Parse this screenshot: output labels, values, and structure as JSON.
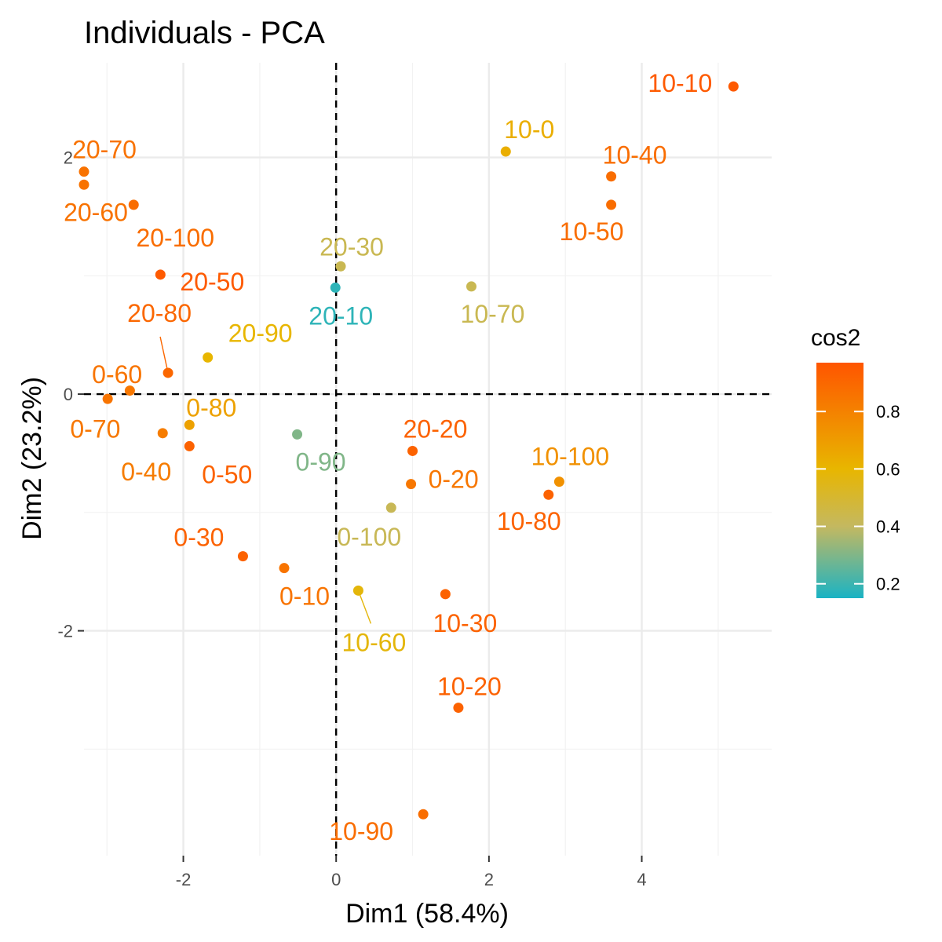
{
  "chart_data": {
    "type": "scatter",
    "title": "Individuals - PCA",
    "xlabel": "Dim1 (58.4%)",
    "ylabel": "Dim2 (23.2%)",
    "xlim": [
      -3.3,
      5.7
    ],
    "ylim": [
      -3.9,
      2.8
    ],
    "x_ticks": [
      -2,
      0,
      2,
      4
    ],
    "y_ticks": [
      -2,
      0,
      2
    ],
    "x_tick_labels": [
      "-2",
      "0",
      "2",
      "4"
    ],
    "y_tick_labels": [
      "-2",
      "0",
      "2"
    ],
    "grid": true,
    "reference_lines": {
      "x": 0,
      "y": 0,
      "style": "dashed"
    },
    "legend": {
      "title": "cos2",
      "placement": "right",
      "range": [
        0.15,
        0.97
      ],
      "ticks": [
        0.2,
        0.4,
        0.6,
        0.8
      ],
      "tick_labels": [
        "0.2",
        "0.4",
        "0.6",
        "0.8"
      ],
      "gradient": [
        {
          "value": 0.15,
          "color": "#1ab3c4"
        },
        {
          "value": 0.4,
          "color": "#c4b860"
        },
        {
          "value": 0.6,
          "color": "#e8b600"
        },
        {
          "value": 0.97,
          "color": "#ff5500"
        }
      ]
    },
    "points": [
      {
        "label": "10-10",
        "x": 5.2,
        "y": 2.6,
        "cos2": 0.95
      },
      {
        "label": "10-0",
        "x": 2.22,
        "y": 2.05,
        "cos2": 0.63
      },
      {
        "label": "10-40",
        "x": 3.6,
        "y": 1.84,
        "cos2": 0.88
      },
      {
        "label": "10-50",
        "x": 3.6,
        "y": 1.6,
        "cos2": 0.88
      },
      {
        "label": "20-70",
        "x": -3.3,
        "y": 1.88,
        "cos2": 0.86
      },
      {
        "label": "20-60",
        "x": -3.3,
        "y": 1.77,
        "cos2": 0.86
      },
      {
        "label": "20-100",
        "x": -2.65,
        "y": 1.6,
        "cos2": 0.88
      },
      {
        "label": "20-50",
        "x": -2.3,
        "y": 1.01,
        "cos2": 0.95
      },
      {
        "label": "20-30",
        "x": 0.06,
        "y": 1.08,
        "cos2": 0.43
      },
      {
        "label": "20-10",
        "x": -0.01,
        "y": 0.9,
        "cos2": 0.18
      },
      {
        "label": "10-70",
        "x": 1.77,
        "y": 0.91,
        "cos2": 0.43
      },
      {
        "label": "20-80",
        "x": -2.2,
        "y": 0.18,
        "cos2": 0.9
      },
      {
        "label": "20-90",
        "x": -1.68,
        "y": 0.31,
        "cos2": 0.6
      },
      {
        "label": "0-60",
        "x": -2.99,
        "y": -0.04,
        "cos2": 0.85
      },
      {
        "label": "0-70",
        "x": -2.7,
        "y": 0.03,
        "cos2": 0.84
      },
      {
        "label": "0-80",
        "x": -1.92,
        "y": -0.26,
        "cos2": 0.68
      },
      {
        "label": "0-40",
        "x": -2.27,
        "y": -0.33,
        "cos2": 0.82
      },
      {
        "label": "0-50",
        "x": -1.92,
        "y": -0.44,
        "cos2": 0.92
      },
      {
        "label": "0-90",
        "x": -0.51,
        "y": -0.34,
        "cos2": 0.3
      },
      {
        "label": "20-20",
        "x": 1.0,
        "y": -0.48,
        "cos2": 0.92
      },
      {
        "label": "0-20",
        "x": 0.98,
        "y": -0.76,
        "cos2": 0.84
      },
      {
        "label": "10-100",
        "x": 2.92,
        "y": -0.74,
        "cos2": 0.74
      },
      {
        "label": "10-80",
        "x": 2.78,
        "y": -0.85,
        "cos2": 0.92
      },
      {
        "label": "0-100",
        "x": 0.72,
        "y": -0.96,
        "cos2": 0.42
      },
      {
        "label": "0-30",
        "x": -1.22,
        "y": -1.37,
        "cos2": 0.92
      },
      {
        "label": "0-10",
        "x": -0.68,
        "y": -1.47,
        "cos2": 0.85
      },
      {
        "label": "10-60",
        "x": 0.29,
        "y": -1.66,
        "cos2": 0.58
      },
      {
        "label": "10-30",
        "x": 1.43,
        "y": -1.69,
        "cos2": 0.92
      },
      {
        "label": "10-20",
        "x": 1.6,
        "y": -2.65,
        "cos2": 0.92
      },
      {
        "label": "10-90",
        "x": 1.14,
        "y": -3.55,
        "cos2": 0.88
      }
    ]
  }
}
